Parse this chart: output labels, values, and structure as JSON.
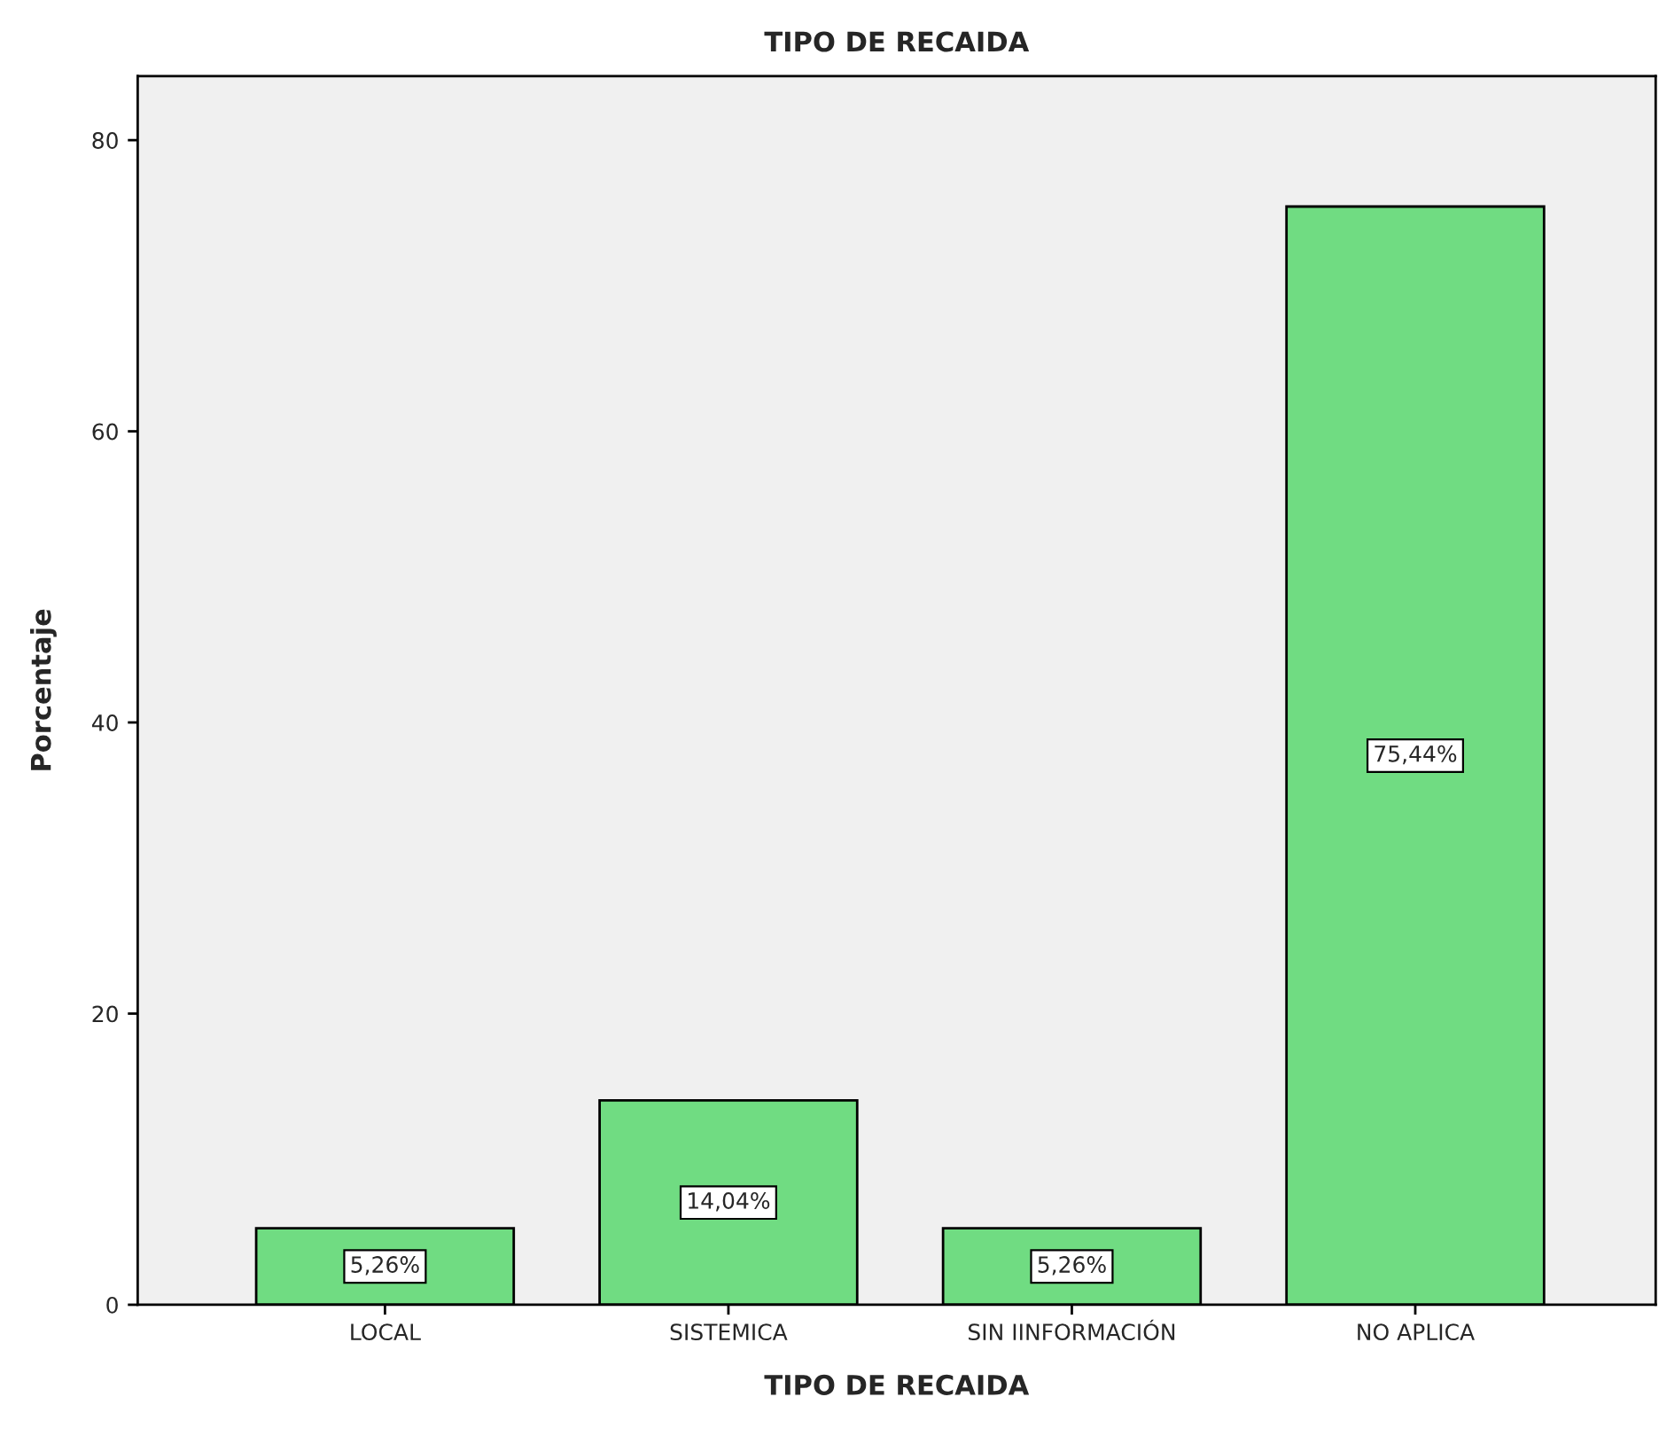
{
  "chart_data": {
    "type": "bar",
    "title": "TIPO DE RECAIDA",
    "xlabel": "TIPO DE RECAIDA",
    "ylabel": "Porcentaje",
    "categories": [
      "LOCAL",
      "SISTEMICA",
      "SIN IINFORMACIÓN",
      "NO APLICA"
    ],
    "values": [
      5.26,
      14.04,
      5.26,
      75.44
    ],
    "value_labels": [
      "5,26%",
      "14,04%",
      "5,26%",
      "75,44%"
    ],
    "color": "#70dc82",
    "ylim": [
      0,
      84.4
    ],
    "yticks": [
      0,
      20,
      40,
      60,
      80
    ],
    "grid": false,
    "legend": false
  }
}
